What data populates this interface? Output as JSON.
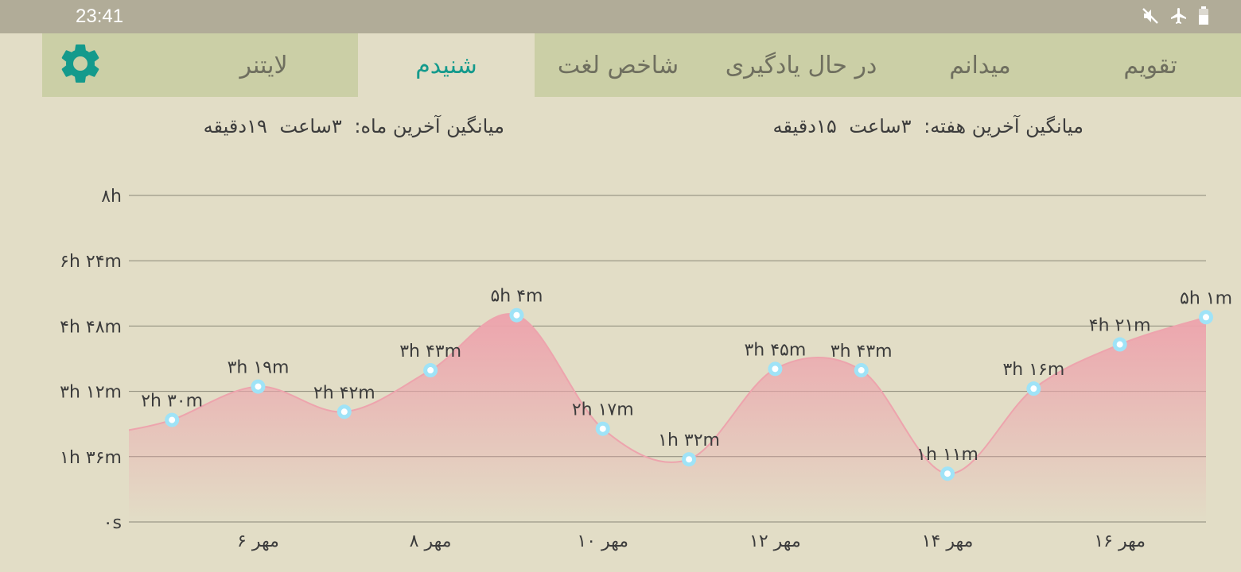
{
  "status_bar": {
    "time": "23:41",
    "icons": [
      "mute-icon",
      "airplane-icon",
      "battery-icon"
    ]
  },
  "tabs": [
    {
      "label": "تقویم",
      "active": false
    },
    {
      "label": "میدانم",
      "active": false
    },
    {
      "label": "در حال یادگیری",
      "active": false
    },
    {
      "label": "شاخص لغت",
      "active": false
    },
    {
      "label": "شنیدم",
      "active": true
    },
    {
      "label": "لایتنر",
      "active": false
    }
  ],
  "settings": {
    "icon": "gear-icon"
  },
  "averages": {
    "week_label": "میانگین آخرین هفته:",
    "week_hours": "۳ساعت",
    "week_minutes": "۱۵دقیقه",
    "month_label": "میانگین آخرین ماه:",
    "month_hours": "۳ساعت",
    "month_minutes": "۱۹دقیقه"
  },
  "colors": {
    "accent": "#149a8c",
    "area_fill_top": "#eda4ad",
    "point_fill": "#9fe3f7"
  },
  "chart_data": {
    "type": "area",
    "x": [
      5,
      6,
      7,
      8,
      9,
      10,
      11,
      12,
      13,
      14,
      15,
      16,
      17
    ],
    "values_minutes": [
      150,
      199,
      162,
      223,
      304,
      137,
      92,
      225,
      223,
      71,
      196,
      261,
      301
    ],
    "point_labels": [
      "۲h ۳۰m",
      "۳h ۱۹m",
      "۲h ۴۲m",
      "۳h ۴۳m",
      "۵h ۴m",
      "۲h ۱۷m",
      "۱h ۳۲m",
      "۳h ۴۵m",
      "۳h ۴۳m",
      "۱h ۱۱m",
      "۳h ۱۶m",
      "۴h ۲۱m",
      "۵h ۱m"
    ],
    "x_ticks": [
      6,
      8,
      10,
      12,
      14,
      16
    ],
    "x_tick_labels": [
      "۶ مهر",
      "۸ مهر",
      "۱۰ مهر",
      "۱۲ مهر",
      "۱۴ مهر",
      "۱۶ مهر"
    ],
    "y_ticks": [
      0,
      96,
      192,
      288,
      384,
      480
    ],
    "y_tick_labels": [
      "۰s",
      "۱h ۳۶m",
      "۳h ۱۲m",
      "۴h ۴۸m",
      "۶h ۲۴m",
      "۸h"
    ],
    "ylim": [
      0,
      480
    ],
    "grid": true,
    "legend": "none"
  }
}
